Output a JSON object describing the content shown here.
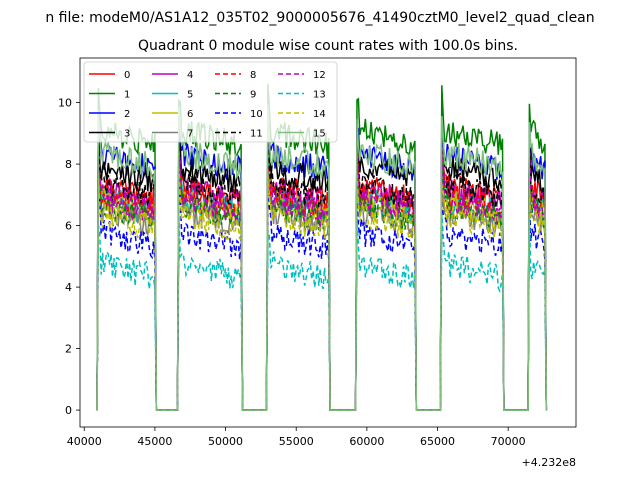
{
  "chart_data": {
    "type": "line",
    "suptitle": "n file: modeM0/AS1A12_035T02_9000005676_41490cztM0_level2_quad_clean",
    "title": "Quadrant 0 module wise count rates with 100.0s bins.",
    "xlabel": "",
    "ylabel": "",
    "x_offset_label": "+4.232e8",
    "xlim": [
      39700,
      74800
    ],
    "ylim": [
      -0.55,
      11.45
    ],
    "x_ticks": [
      40000,
      45000,
      50000,
      55000,
      60000,
      65000,
      70000
    ],
    "x_tick_labels": [
      "40000",
      "45000",
      "50000",
      "55000",
      "60000",
      "65000",
      "70000"
    ],
    "y_ticks": [
      0,
      2,
      4,
      6,
      8,
      10
    ],
    "y_tick_labels": [
      "0",
      "2",
      "4",
      "6",
      "8",
      "10"
    ],
    "legend_position": "upper-left",
    "bin_seconds": 100,
    "orbit_segments": [
      [
        41000,
        45000
      ],
      [
        46700,
        51100
      ],
      [
        53000,
        57300
      ],
      [
        59300,
        63400
      ],
      [
        65300,
        69600
      ],
      [
        71500,
        72600
      ]
    ],
    "gap_level": 0,
    "series": [
      {
        "name": "0",
        "color": "#ff0000",
        "dash": "solid",
        "level": 7.3
      },
      {
        "name": "1",
        "color": "#008000",
        "dash": "solid",
        "level": 9.1
      },
      {
        "name": "2",
        "color": "#0000ff",
        "dash": "solid",
        "level": 8.3
      },
      {
        "name": "3",
        "color": "#000000",
        "dash": "solid",
        "level": 7.9
      },
      {
        "name": "4",
        "color": "#bf00bf",
        "dash": "solid",
        "level": 7.2
      },
      {
        "name": "5",
        "color": "#00bfbf",
        "dash": "solid",
        "level": 6.9
      },
      {
        "name": "6",
        "color": "#bfbf00",
        "dash": "solid",
        "level": 6.8
      },
      {
        "name": "7",
        "color": "#808080",
        "dash": "solid",
        "level": 6.5
      },
      {
        "name": "8",
        "color": "#ff0000",
        "dash": "dashed",
        "level": 7.1
      },
      {
        "name": "9",
        "color": "#008000",
        "dash": "dashed",
        "level": 6.7
      },
      {
        "name": "10",
        "color": "#0000ff",
        "dash": "dashed",
        "level": 5.8
      },
      {
        "name": "11",
        "color": "#000000",
        "dash": "dashed",
        "level": 7.4
      },
      {
        "name": "12",
        "color": "#bf00bf",
        "dash": "dashed",
        "level": 6.9
      },
      {
        "name": "13",
        "color": "#00bfbf",
        "dash": "dashed",
        "level": 4.8
      },
      {
        "name": "14",
        "color": "#bfbf00",
        "dash": "dashed",
        "level": 6.4
      },
      {
        "name": "15",
        "color": "#7fbf7f",
        "dash": "solid",
        "level": 8.4
      }
    ]
  }
}
